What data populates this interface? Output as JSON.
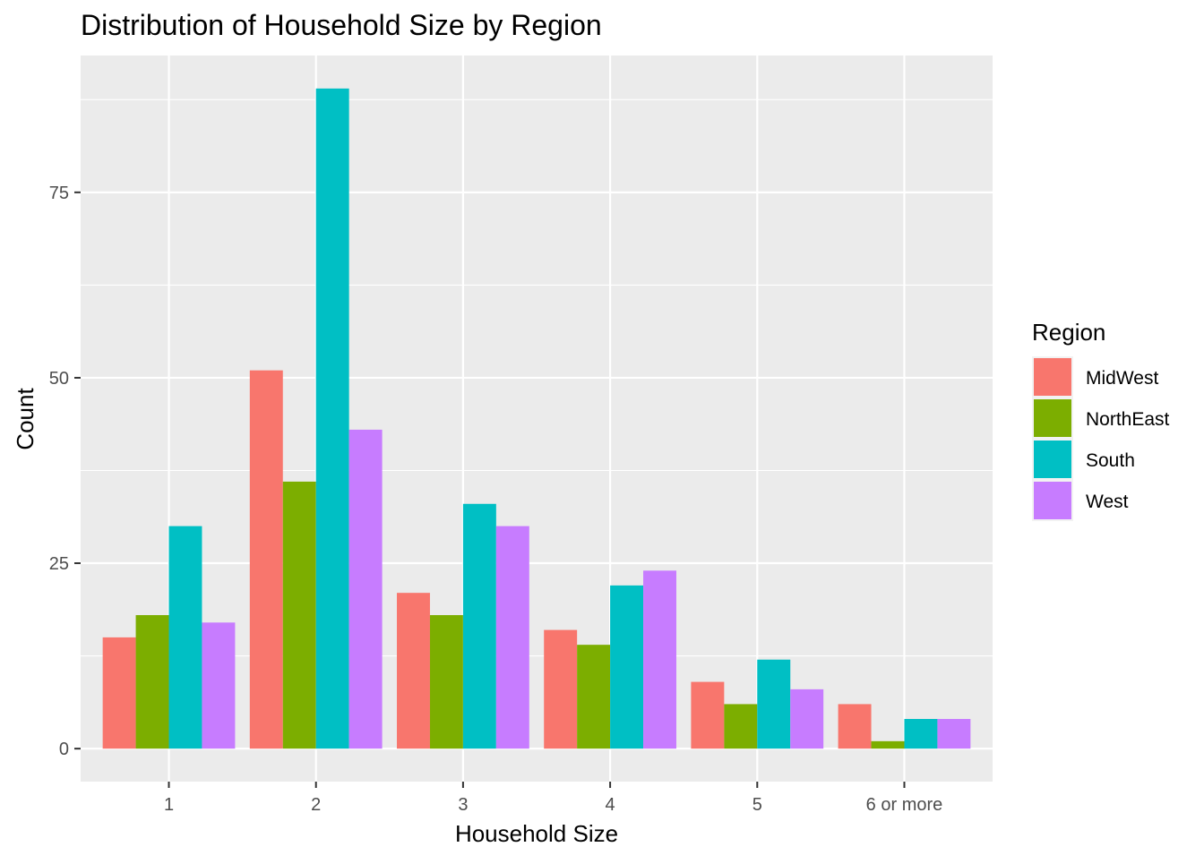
{
  "chart_data": {
    "type": "bar",
    "title": "Distribution of Household Size by Region",
    "xlabel": "Household Size",
    "ylabel": "Count",
    "categories": [
      "1",
      "2",
      "3",
      "4",
      "5",
      "6 or more"
    ],
    "series": [
      {
        "name": "MidWest",
        "color": "#F8766D",
        "values": [
          15,
          51,
          21,
          16,
          9,
          6
        ]
      },
      {
        "name": "NorthEast",
        "color": "#7CAE00",
        "values": [
          18,
          36,
          18,
          14,
          6,
          1
        ]
      },
      {
        "name": "South",
        "color": "#00BFC4",
        "values": [
          30,
          89,
          33,
          22,
          12,
          4
        ]
      },
      {
        "name": "West",
        "color": "#C77CFF",
        "values": [
          17,
          43,
          30,
          24,
          8,
          4
        ]
      }
    ],
    "ylim": [
      -4.45,
      93.45
    ],
    "yticks": [
      0,
      25,
      50,
      75
    ],
    "legend": {
      "title": "Region",
      "position": "right"
    },
    "grid": true,
    "panel_background": "#EBEBEB",
    "grid_color": "#FFFFFF"
  }
}
